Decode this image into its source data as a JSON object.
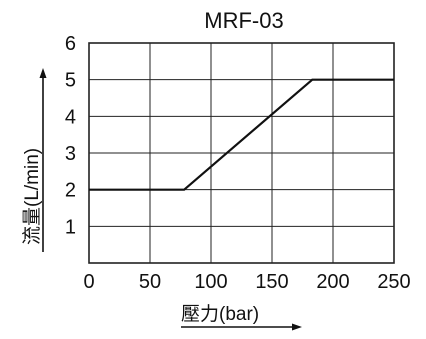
{
  "chart_data": {
    "type": "line",
    "title": "MRF-03",
    "xlabel": "壓力(bar)",
    "ylabel": "流量(L/min)",
    "xlim": [
      0,
      250
    ],
    "ylim": [
      0,
      6
    ],
    "x_ticks": [
      0,
      50,
      100,
      150,
      200,
      250
    ],
    "y_ticks": [
      1,
      2,
      3,
      4,
      5,
      6
    ],
    "x_tick_labels": [
      "0",
      "50",
      "100",
      "150",
      "200",
      "250"
    ],
    "y_tick_labels": [
      "1",
      "2",
      "3",
      "4",
      "5",
      "6"
    ],
    "grid": true,
    "series": [
      {
        "x": [
          0,
          78,
          183,
          250
        ],
        "y": [
          2,
          2,
          5,
          5
        ]
      }
    ]
  },
  "colors": {
    "line": "#111111",
    "grid": "#222222",
    "background": "#ffffff"
  }
}
